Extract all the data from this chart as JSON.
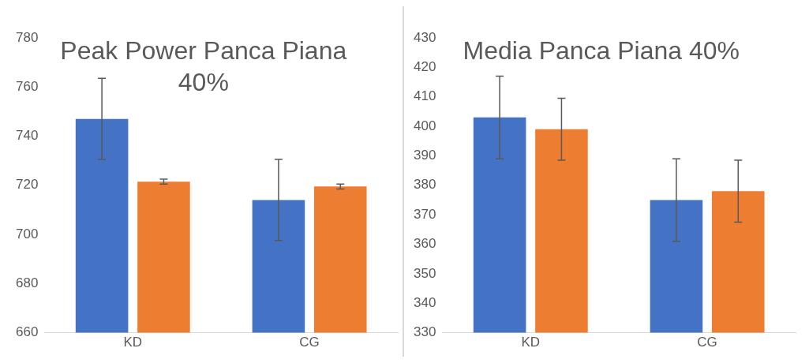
{
  "chart_data": [
    {
      "type": "bar",
      "title": "Peak Power Panca Piana 40%",
      "categories": [
        "KD",
        "CG"
      ],
      "series": [
        {
          "color": "#4472c4",
          "values": [
            747,
            714
          ],
          "errors": [
            16.5,
            16.5
          ]
        },
        {
          "color": "#ed7d31",
          "values": [
            721.5,
            719.5
          ],
          "errors": [
            1,
            1
          ]
        }
      ],
      "ylim": [
        660,
        780
      ],
      "yticks": [
        660,
        680,
        700,
        720,
        740,
        760,
        780
      ],
      "grid": false,
      "legend": false
    },
    {
      "type": "bar",
      "title": "Media Panca Piana 40%",
      "categories": [
        "KD",
        "CG"
      ],
      "series": [
        {
          "color": "#4472c4",
          "values": [
            403,
            375
          ],
          "errors": [
            14,
            14
          ]
        },
        {
          "color": "#ed7d31",
          "values": [
            399,
            378
          ],
          "errors": [
            10.5,
            10.5
          ]
        }
      ],
      "ylim": [
        330,
        430
      ],
      "yticks": [
        330,
        340,
        350,
        360,
        370,
        380,
        390,
        400,
        410,
        420,
        430
      ],
      "grid": false,
      "legend": false
    }
  ]
}
